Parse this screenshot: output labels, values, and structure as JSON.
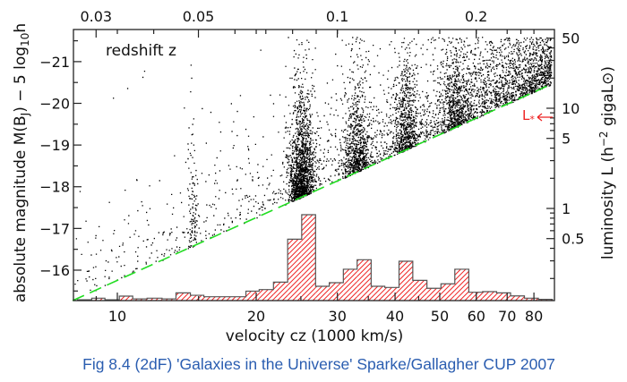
{
  "chart_data": {
    "type": "scatter",
    "subtype": "scatter with overlaid histogram",
    "xlabel": "velocity cz (1000 km/s)",
    "ylabel_left": "absolute magnitude M(B",
    "ylabel_left_sub": "J",
    "ylabel_left_tail": ") − 5 log",
    "ylabel_left_sub2": "10",
    "ylabel_left_end": "h",
    "ylabel_right": "luminosity L (h",
    "ylabel_right_sup": "−2",
    "ylabel_right_end": " gigaL⊙)",
    "top_axis_label": "redshift z",
    "x_scale": "log",
    "xlim": [
      8.0,
      89
    ],
    "ylim": [
      -15.27,
      -21.77
    ],
    "y_inverted": true,
    "x_ticks": [
      10,
      20,
      30,
      40,
      50,
      60,
      70,
      80
    ],
    "x_tick_labels": [
      "10",
      "20",
      "30",
      "40",
      "50",
      "60",
      "70",
      "80"
    ],
    "y_ticks": [
      -21,
      -20,
      -19,
      -18,
      -17,
      -16
    ],
    "y_tick_labels": [
      "−21",
      "−20",
      "−19",
      "−18",
      "−17",
      "−16"
    ],
    "top_ticks": [
      0.03,
      0.05,
      0.1,
      0.2
    ],
    "top_tick_labels": [
      "0.03",
      "0.05",
      "0.1",
      "0.2"
    ],
    "right_ticks": [
      50,
      10,
      5,
      1,
      0.5
    ],
    "right_tick_labels": [
      "50",
      "10",
      "5",
      "1",
      "0.5"
    ],
    "grid": false,
    "limit_line": {
      "style": "dashed",
      "color": "#22dd22",
      "slope_mag_per_decade": -5,
      "start": [
        8.0,
        -15.27
      ]
    },
    "annotation": {
      "text": "L",
      "sub": "*",
      "color": "#ee2222",
      "pointer": "arrow pointing right to luminosity axis"
    },
    "histogram": {
      "color": "#ee2222",
      "pattern": "diagonal hatch",
      "bin_edges_velocity": [
        8.2,
        8.8,
        9.4,
        10.1,
        10.8,
        11.6,
        12.5,
        13.4,
        14.4,
        15.4,
        16.5,
        17.7,
        19.0,
        20.3,
        21.8,
        23.4,
        25.1,
        26.9,
        28.8,
        30.9,
        33.1,
        35.5,
        38.0,
        40.8,
        43.7,
        46.9,
        50.3,
        53.9,
        57.8,
        61.9,
        66.4,
        71.2,
        76.3,
        81.8,
        87.7
      ],
      "relative_counts": [
        1,
        2.8,
        1,
        5.2,
        2,
        2.8,
        2,
        9,
        6.2,
        4.5,
        4.5,
        4.5,
        11,
        12.8,
        21.5,
        71.5,
        100,
        16.7,
        20.8,
        36.5,
        47.6,
        16.7,
        15.3,
        45.8,
        23.6,
        14.3,
        19.5,
        36.5,
        9.7,
        10.4,
        9,
        5.5,
        2.8,
        1.4
      ]
    },
    "series": [
      {
        "type": "scatter",
        "color": "#000000",
        "description_visible": "galaxies (dots)"
      }
    ]
  },
  "caption": "Fig 8.4 (2dF) 'Galaxies in the Universe' Sparke/Gallagher CUP 2007"
}
